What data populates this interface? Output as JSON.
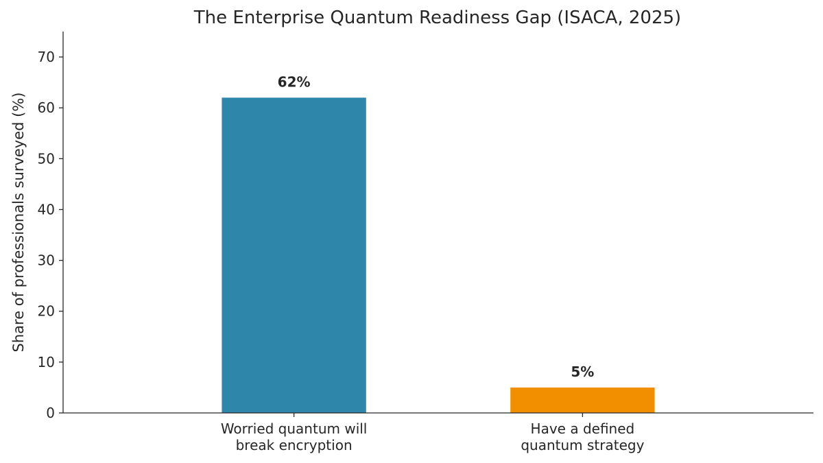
{
  "chart_data": {
    "type": "bar",
    "title": "The Enterprise Quantum Readiness Gap (ISACA, 2025)",
    "xlabel": "",
    "ylabel": "Share of professionals surveyed (%)",
    "ylim": [
      0,
      75
    ],
    "yticks": [
      0,
      10,
      20,
      30,
      40,
      50,
      60,
      70
    ],
    "grid": false,
    "legend": "none",
    "categories": [
      [
        "Worried quantum will",
        "break encryption"
      ],
      [
        "Have a defined",
        "quantum strategy"
      ]
    ],
    "values": [
      62,
      5
    ],
    "data_labels": [
      "62%",
      "5%"
    ],
    "colors": [
      "#2e86ab",
      "#f18f01"
    ]
  }
}
